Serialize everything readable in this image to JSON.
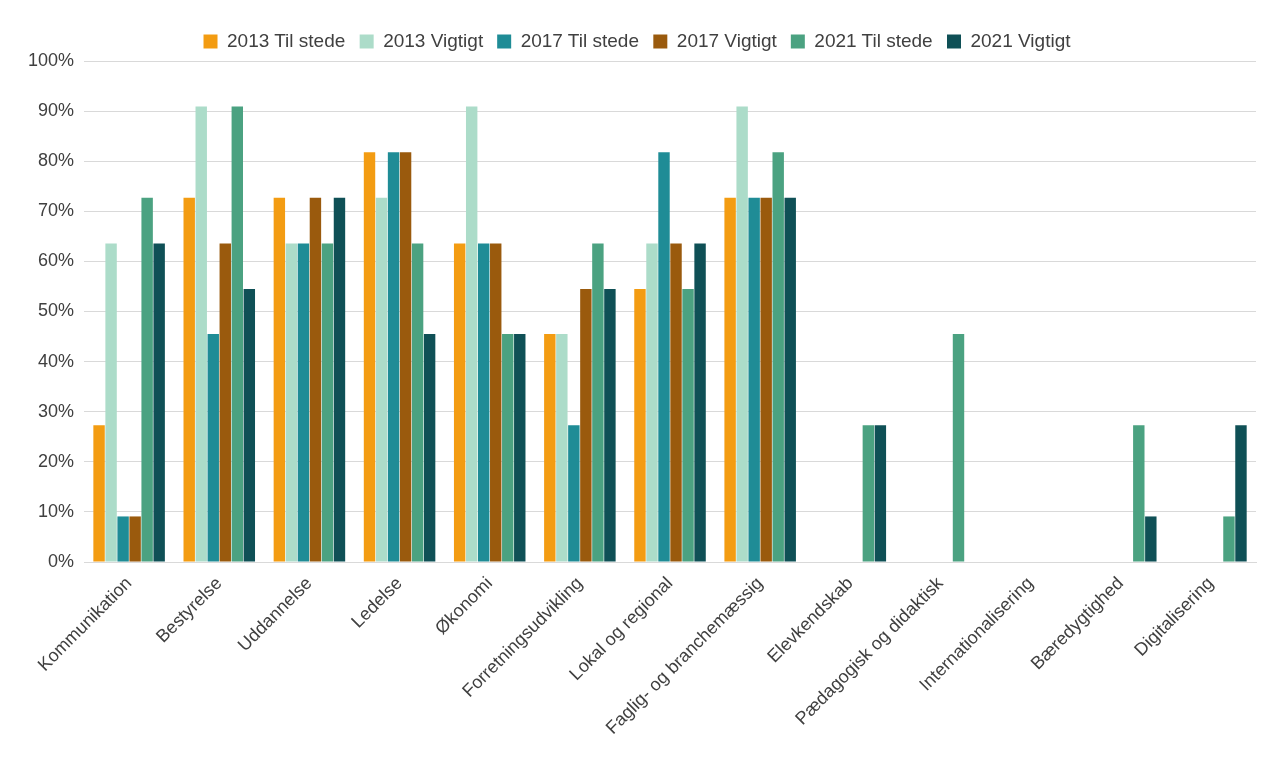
{
  "chart_data": {
    "type": "bar",
    "categories": [
      "Kommunikation",
      "Bestyrelse",
      "Uddannelse",
      "Ledelse",
      "Økonomi",
      "Forretningsudvikling",
      "Lokal og regional",
      "Faglig- og branchemæssig",
      "Elevkendskab",
      "Pædagogisk og didaktisk",
      "Internationalisering",
      "Bæredygtighed",
      "Digitalisering"
    ],
    "series": [
      {
        "name": "2013 Til stede",
        "color": "#f39c12",
        "values": [
          27.3,
          72.7,
          72.7,
          81.8,
          63.6,
          45.5,
          54.5,
          72.7,
          0,
          0,
          0,
          0,
          0
        ]
      },
      {
        "name": "2013 Vigtigt",
        "color": "#acdcc9",
        "values": [
          63.6,
          90.9,
          63.6,
          72.7,
          90.9,
          45.5,
          63.6,
          90.9,
          0,
          0,
          0,
          0,
          0
        ]
      },
      {
        "name": "2017 Til stede",
        "color": "#1f8c96",
        "values": [
          9.1,
          45.5,
          63.6,
          81.8,
          63.6,
          27.3,
          81.8,
          72.7,
          0,
          0,
          0,
          0,
          0
        ]
      },
      {
        "name": "2017 Vigtigt",
        "color": "#9a5a0d",
        "values": [
          9.1,
          63.6,
          72.7,
          81.8,
          63.6,
          54.5,
          63.6,
          72.7,
          0,
          0,
          0,
          0,
          0
        ]
      },
      {
        "name": "2021 Til stede",
        "color": "#4ba281",
        "values": [
          72.7,
          90.9,
          63.6,
          63.6,
          45.5,
          63.6,
          54.5,
          81.8,
          27.3,
          45.5,
          0,
          27.3,
          9.1
        ]
      },
      {
        "name": "2021 Vigtigt",
        "color": "#0f5056",
        "values": [
          63.6,
          54.5,
          72.7,
          45.5,
          45.5,
          54.5,
          63.6,
          72.7,
          27.3,
          0,
          0,
          9.1,
          27.3
        ]
      }
    ],
    "ylim": [
      0,
      100
    ],
    "yticks": [
      {
        "value": 0,
        "label": "0%"
      },
      {
        "value": 10,
        "label": "10%"
      },
      {
        "value": 20,
        "label": "20%"
      },
      {
        "value": 30,
        "label": "30%"
      },
      {
        "value": 40,
        "label": "40%"
      },
      {
        "value": 50,
        "label": "50%"
      },
      {
        "value": 60,
        "label": "60%"
      },
      {
        "value": 70,
        "label": "70%"
      },
      {
        "value": 80,
        "label": "80%"
      },
      {
        "value": 90,
        "label": "90%"
      },
      {
        "value": 100,
        "label": "100%"
      }
    ],
    "grid": "y",
    "legend": "top"
  }
}
